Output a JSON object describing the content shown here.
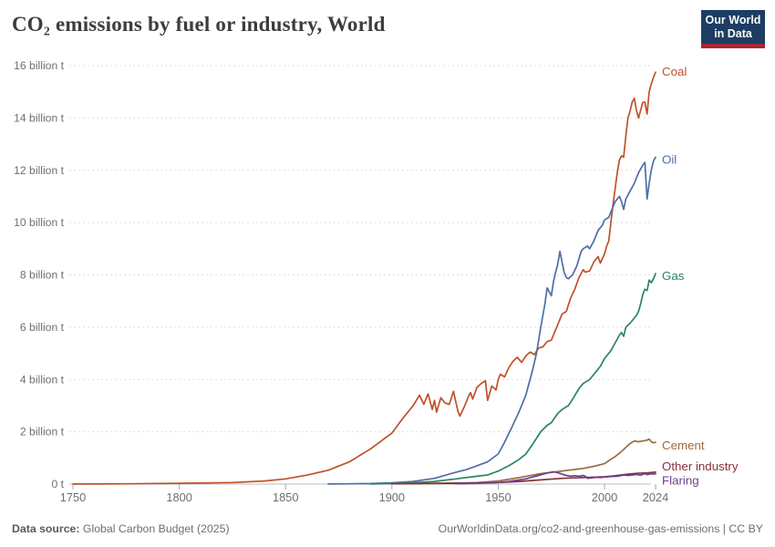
{
  "header": {
    "title": "CO₂ emissions by fuel or industry, World"
  },
  "logo": {
    "line1": "Our World",
    "line2": "in Data",
    "bg_color": "#1d3d63",
    "accent_color": "#a82731"
  },
  "footer": {
    "source_label": "Data source:",
    "source_text": " Global Carbon Budget (2025)",
    "credit": "OurWorldinData.org/co2-and-greenhouse-gas-emissions | CC BY"
  },
  "chart_data": {
    "type": "line",
    "title": "CO₂ emissions by fuel or industry, World",
    "xlabel": "",
    "ylabel": "",
    "x_range": [
      1750,
      2024
    ],
    "y_range": [
      0,
      16
    ],
    "x_ticks": [
      1750,
      1800,
      1850,
      1900,
      1950,
      2000,
      2024
    ],
    "y_ticks": [
      {
        "value": 0,
        "label": "0 t"
      },
      {
        "value": 2,
        "label": "2 billion t"
      },
      {
        "value": 4,
        "label": "4 billion t"
      },
      {
        "value": 6,
        "label": "6 billion t"
      },
      {
        "value": 8,
        "label": "8 billion t"
      },
      {
        "value": 10,
        "label": "10 billion t"
      },
      {
        "value": 12,
        "label": "12 billion t"
      },
      {
        "value": 14,
        "label": "14 billion t"
      },
      {
        "value": 16,
        "label": "16 billion t"
      }
    ],
    "grid": "horizontal-dashed",
    "legend_position": "end-of-line-labels",
    "series": [
      {
        "name": "Coal",
        "color": "#c0512a",
        "points": [
          [
            1750,
            0.003
          ],
          [
            1775,
            0.01
          ],
          [
            1800,
            0.03
          ],
          [
            1825,
            0.06
          ],
          [
            1840,
            0.12
          ],
          [
            1850,
            0.2
          ],
          [
            1860,
            0.34
          ],
          [
            1870,
            0.53
          ],
          [
            1880,
            0.85
          ],
          [
            1890,
            1.35
          ],
          [
            1900,
            1.95
          ],
          [
            1905,
            2.5
          ],
          [
            1910,
            3.0
          ],
          [
            1913,
            3.4
          ],
          [
            1915,
            3.05
          ],
          [
            1917,
            3.45
          ],
          [
            1919,
            2.85
          ],
          [
            1920,
            3.2
          ],
          [
            1921,
            2.75
          ],
          [
            1923,
            3.3
          ],
          [
            1925,
            3.1
          ],
          [
            1927,
            3.05
          ],
          [
            1929,
            3.55
          ],
          [
            1931,
            2.8
          ],
          [
            1932,
            2.6
          ],
          [
            1934,
            2.95
          ],
          [
            1936,
            3.35
          ],
          [
            1937,
            3.5
          ],
          [
            1938,
            3.25
          ],
          [
            1940,
            3.7
          ],
          [
            1942,
            3.85
          ],
          [
            1944,
            3.95
          ],
          [
            1945,
            3.2
          ],
          [
            1947,
            3.75
          ],
          [
            1949,
            3.6
          ],
          [
            1950,
            4.0
          ],
          [
            1951,
            4.2
          ],
          [
            1953,
            4.1
          ],
          [
            1955,
            4.45
          ],
          [
            1957,
            4.7
          ],
          [
            1959,
            4.85
          ],
          [
            1961,
            4.65
          ],
          [
            1963,
            4.9
          ],
          [
            1965,
            5.05
          ],
          [
            1967,
            4.95
          ],
          [
            1969,
            5.2
          ],
          [
            1971,
            5.25
          ],
          [
            1973,
            5.45
          ],
          [
            1975,
            5.5
          ],
          [
            1977,
            5.9
          ],
          [
            1979,
            6.3
          ],
          [
            1980,
            6.5
          ],
          [
            1982,
            6.6
          ],
          [
            1984,
            7.1
          ],
          [
            1986,
            7.45
          ],
          [
            1988,
            7.9
          ],
          [
            1990,
            8.2
          ],
          [
            1991,
            8.1
          ],
          [
            1993,
            8.15
          ],
          [
            1995,
            8.5
          ],
          [
            1997,
            8.7
          ],
          [
            1998,
            8.45
          ],
          [
            2000,
            8.8
          ],
          [
            2001,
            9.1
          ],
          [
            2002,
            9.3
          ],
          [
            2003,
            10.0
          ],
          [
            2004,
            10.7
          ],
          [
            2005,
            11.3
          ],
          [
            2006,
            11.9
          ],
          [
            2007,
            12.4
          ],
          [
            2008,
            12.55
          ],
          [
            2009,
            12.5
          ],
          [
            2010,
            13.3
          ],
          [
            2011,
            14.0
          ],
          [
            2012,
            14.25
          ],
          [
            2013,
            14.6
          ],
          [
            2014,
            14.75
          ],
          [
            2015,
            14.3
          ],
          [
            2016,
            14.0
          ],
          [
            2017,
            14.3
          ],
          [
            2018,
            14.6
          ],
          [
            2019,
            14.6
          ],
          [
            2020,
            14.15
          ],
          [
            2021,
            15.0
          ],
          [
            2022,
            15.3
          ],
          [
            2023,
            15.55
          ],
          [
            2024,
            15.75
          ]
        ]
      },
      {
        "name": "Oil",
        "color": "#4c6fa5",
        "points": [
          [
            1870,
            0.003
          ],
          [
            1890,
            0.02
          ],
          [
            1900,
            0.05
          ],
          [
            1910,
            0.1
          ],
          [
            1920,
            0.22
          ],
          [
            1930,
            0.45
          ],
          [
            1935,
            0.55
          ],
          [
            1940,
            0.7
          ],
          [
            1945,
            0.85
          ],
          [
            1950,
            1.15
          ],
          [
            1953,
            1.6
          ],
          [
            1956,
            2.1
          ],
          [
            1960,
            2.8
          ],
          [
            1963,
            3.4
          ],
          [
            1966,
            4.3
          ],
          [
            1968,
            5.0
          ],
          [
            1970,
            6.0
          ],
          [
            1972,
            6.9
          ],
          [
            1973,
            7.5
          ],
          [
            1974,
            7.35
          ],
          [
            1975,
            7.2
          ],
          [
            1976,
            7.75
          ],
          [
            1977,
            8.1
          ],
          [
            1978,
            8.4
          ],
          [
            1979,
            8.9
          ],
          [
            1980,
            8.5
          ],
          [
            1981,
            8.1
          ],
          [
            1982,
            7.9
          ],
          [
            1983,
            7.85
          ],
          [
            1985,
            8.0
          ],
          [
            1987,
            8.35
          ],
          [
            1989,
            8.9
          ],
          [
            1990,
            9.0
          ],
          [
            1992,
            9.1
          ],
          [
            1993,
            9.0
          ],
          [
            1995,
            9.3
          ],
          [
            1997,
            9.7
          ],
          [
            1999,
            9.9
          ],
          [
            2000,
            10.1
          ],
          [
            2002,
            10.2
          ],
          [
            2003,
            10.4
          ],
          [
            2005,
            10.8
          ],
          [
            2007,
            11.0
          ],
          [
            2008,
            10.8
          ],
          [
            2009,
            10.5
          ],
          [
            2010,
            10.9
          ],
          [
            2012,
            11.2
          ],
          [
            2014,
            11.5
          ],
          [
            2016,
            11.9
          ],
          [
            2018,
            12.2
          ],
          [
            2019,
            12.3
          ],
          [
            2020,
            10.9
          ],
          [
            2021,
            11.5
          ],
          [
            2022,
            12.0
          ],
          [
            2023,
            12.35
          ],
          [
            2024,
            12.5
          ]
        ]
      },
      {
        "name": "Gas",
        "color": "#2c8465",
        "points": [
          [
            1890,
            0.005
          ],
          [
            1900,
            0.02
          ],
          [
            1910,
            0.05
          ],
          [
            1920,
            0.1
          ],
          [
            1930,
            0.2
          ],
          [
            1940,
            0.3
          ],
          [
            1945,
            0.35
          ],
          [
            1950,
            0.5
          ],
          [
            1955,
            0.7
          ],
          [
            1960,
            0.95
          ],
          [
            1963,
            1.15
          ],
          [
            1966,
            1.5
          ],
          [
            1970,
            2.0
          ],
          [
            1973,
            2.25
          ],
          [
            1975,
            2.35
          ],
          [
            1978,
            2.7
          ],
          [
            1980,
            2.85
          ],
          [
            1983,
            3.0
          ],
          [
            1985,
            3.25
          ],
          [
            1988,
            3.65
          ],
          [
            1990,
            3.85
          ],
          [
            1993,
            4.0
          ],
          [
            1995,
            4.2
          ],
          [
            1998,
            4.5
          ],
          [
            2000,
            4.8
          ],
          [
            2003,
            5.1
          ],
          [
            2005,
            5.4
          ],
          [
            2007,
            5.7
          ],
          [
            2008,
            5.8
          ],
          [
            2009,
            5.65
          ],
          [
            2010,
            6.0
          ],
          [
            2012,
            6.15
          ],
          [
            2014,
            6.35
          ],
          [
            2015,
            6.45
          ],
          [
            2016,
            6.6
          ],
          [
            2017,
            6.9
          ],
          [
            2018,
            7.25
          ],
          [
            2019,
            7.45
          ],
          [
            2020,
            7.4
          ],
          [
            2021,
            7.8
          ],
          [
            2022,
            7.7
          ],
          [
            2023,
            7.85
          ],
          [
            2024,
            8.05
          ]
        ]
      },
      {
        "name": "Cement",
        "color": "#996d39",
        "points": [
          [
            1900,
            0.01
          ],
          [
            1930,
            0.04
          ],
          [
            1940,
            0.06
          ],
          [
            1950,
            0.12
          ],
          [
            1960,
            0.25
          ],
          [
            1970,
            0.4
          ],
          [
            1980,
            0.5
          ],
          [
            1990,
            0.6
          ],
          [
            1995,
            0.68
          ],
          [
            2000,
            0.78
          ],
          [
            2003,
            0.95
          ],
          [
            2005,
            1.05
          ],
          [
            2008,
            1.25
          ],
          [
            2010,
            1.4
          ],
          [
            2012,
            1.55
          ],
          [
            2014,
            1.65
          ],
          [
            2016,
            1.62
          ],
          [
            2018,
            1.65
          ],
          [
            2020,
            1.68
          ],
          [
            2021,
            1.72
          ],
          [
            2022,
            1.62
          ],
          [
            2023,
            1.58
          ],
          [
            2024,
            1.6
          ]
        ]
      },
      {
        "name": "Other industry",
        "color": "#883039",
        "points": [
          [
            1900,
            0.01
          ],
          [
            1930,
            0.03
          ],
          [
            1950,
            0.06
          ],
          [
            1960,
            0.1
          ],
          [
            1970,
            0.16
          ],
          [
            1980,
            0.22
          ],
          [
            1990,
            0.25
          ],
          [
            2000,
            0.28
          ],
          [
            2005,
            0.32
          ],
          [
            2010,
            0.37
          ],
          [
            2015,
            0.41
          ],
          [
            2020,
            0.43
          ],
          [
            2024,
            0.46
          ]
        ]
      },
      {
        "name": "Flaring",
        "color": "#6d3e91",
        "points": [
          [
            1930,
            0.01
          ],
          [
            1940,
            0.03
          ],
          [
            1950,
            0.06
          ],
          [
            1955,
            0.1
          ],
          [
            1960,
            0.16
          ],
          [
            1963,
            0.2
          ],
          [
            1966,
            0.27
          ],
          [
            1969,
            0.33
          ],
          [
            1971,
            0.38
          ],
          [
            1974,
            0.44
          ],
          [
            1976,
            0.47
          ],
          [
            1978,
            0.44
          ],
          [
            1980,
            0.38
          ],
          [
            1982,
            0.33
          ],
          [
            1984,
            0.3
          ],
          [
            1986,
            0.32
          ],
          [
            1988,
            0.3
          ],
          [
            1990,
            0.33
          ],
          [
            1991,
            0.3
          ],
          [
            1992,
            0.22
          ],
          [
            1994,
            0.24
          ],
          [
            1996,
            0.26
          ],
          [
            1998,
            0.25
          ],
          [
            2000,
            0.27
          ],
          [
            2003,
            0.29
          ],
          [
            2006,
            0.3
          ],
          [
            2009,
            0.35
          ],
          [
            2011,
            0.33
          ],
          [
            2013,
            0.35
          ],
          [
            2015,
            0.37
          ],
          [
            2017,
            0.34
          ],
          [
            2019,
            0.4
          ],
          [
            2020,
            0.36
          ],
          [
            2022,
            0.4
          ],
          [
            2023,
            0.38
          ],
          [
            2024,
            0.4
          ]
        ]
      }
    ]
  }
}
